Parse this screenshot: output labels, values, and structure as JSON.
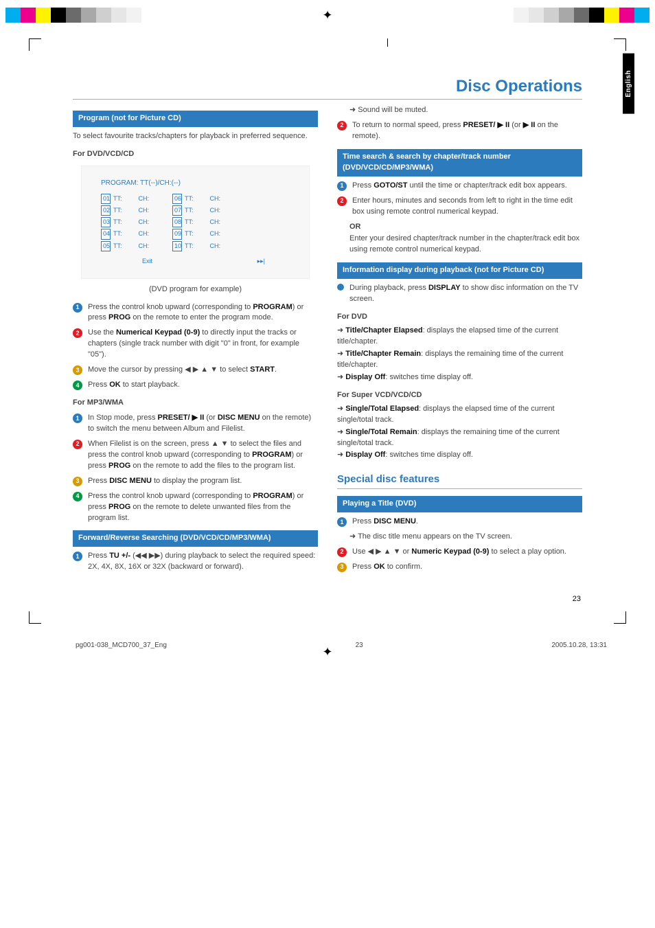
{
  "top_strip_colors_left": [
    "#00aeef",
    "#ec008c",
    "#fff200",
    "#000000",
    "#6b6b6b",
    "#a8a8a8",
    "#cfcfcf",
    "#e6e6e6",
    "#f2f2f2"
  ],
  "top_strip_colors_right": [
    "#f2f2f2",
    "#e6e6e6",
    "#cfcfcf",
    "#a8a8a8",
    "#6b6b6b",
    "#000000",
    "#fff200",
    "#ec008c",
    "#00aeef"
  ],
  "side_tab": "English",
  "page_title": "Disc Operations",
  "page_number": "23",
  "footer_left": "pg001-038_MCD700_37_Eng",
  "footer_mid": "23",
  "footer_right": "2005.10.28, 13:31",
  "left": {
    "h1": "Program (not for Picture CD)",
    "p1": "To select favourite tracks/chapters for playback in preferred sequence.",
    "sub1": "For DVD/VCD/CD",
    "fig_title": "PROGRAM: TT(--)/CH:(--)",
    "fig_rows_left": [
      "01",
      "02",
      "03",
      "04",
      "05"
    ],
    "fig_rows_right": [
      "06",
      "07",
      "08",
      "09",
      "10"
    ],
    "fig_tt": "TT:",
    "fig_ch": "CH:",
    "fig_exit": "Exit",
    "fig_next_icon": "▸▸|",
    "caption": "(DVD program for example)",
    "step1": "Press the control knob upward (corresponding to <b>PROGRAM</b>) or press <b>PROG</b> on the remote to enter the program mode.",
    "step2": "Use the <b>Numerical Keypad (0-9)</b> to directly input the tracks or chapters (single track number with digit \"0\" in front, for example \"05\").",
    "step3": "Move the cursor by pressing ◀ ▶ ▲ ▼ to select <b>START</b>.",
    "step4": "Press <b>OK</b> to start playback.",
    "sub2": "For MP3/WMA",
    "mp3_1": "In Stop mode, press <b>PRESET/ ▶ II</b>  (or <b>DISC MENU</b> on the remote) to switch the menu between Album and Filelist.",
    "mp3_2": "When Filelist is on the screen, press ▲ ▼ to select the files and press the control knob upward (corresponding to <b>PROGRAM</b>) or press <b>PROG</b> on the remote  to add the files to the program list.",
    "mp3_3": "Press <b>DISC MENU</b> to display the program list.",
    "mp3_4": "Press the control knob upward (corresponding to <b>PROGRAM</b>) or press <b>PROG</b> on the remote to delete unwanted files from the program list.",
    "h2": "Forward/Reverse Searching (DVD/VCD/CD/MP3/WMA)",
    "fr_1": "Press <b>TU +/-</b> (◀◀ ▶▶)  during playback to select the required speed: 2X, 4X, 8X, 16X or 32X (backward or forward)."
  },
  "right": {
    "arrow_muted": "➜ Sound will be muted.",
    "step2": "To return to normal speed, press <b>PRESET/ ▶ II</b>  (or  <b>▶ II</b>  on the remote).",
    "h1": "Time search & search by chapter/track number (DVD/VCD/CD/MP3/WMA)",
    "ts_1": "Press <b>GOTO/ST</b> until the time or chapter/track edit box appears.",
    "ts_2": "Enter hours, minutes and seconds from left to right in the time edit box using remote control numerical keypad.",
    "or": "OR",
    "ts_or_text": "Enter your desired chapter/track number in the chapter/track edit box using remote control numerical keypad.",
    "h2": "Information display during playback (not for Picture CD)",
    "info_bullet": "During playback, press <b>DISPLAY</b> to show disc information on the TV screen.",
    "sub_dvd": "For DVD",
    "dvd_l1": "➜ <b>Title/Chapter Elapsed</b>: displays the elapsed time of the current title/chapter.",
    "dvd_l2": "➜ <b>Title/Chapter Remain</b>: displays the remaining time of the current title/chapter.",
    "dvd_l3": "➜ <b>Display Off</b>: switches time display off.",
    "sub_svcd": "For Super VCD/VCD/CD",
    "svcd_l1": "➜ <b>Single/Total Elapsed</b>: displays the elapsed time of the current single/total track.",
    "svcd_l2": "➜ <b>Single/Total Remain</b>: displays the remaining time of the current single/total track.",
    "svcd_l3": "➜ <b>Display Off</b>: switches time display off.",
    "special_title": "Special disc features",
    "h3": "Playing a Title (DVD)",
    "pt_1": "Press <b>DISC MENU</b>.",
    "pt_1_arrow": "➜ The disc title menu appears on the TV screen.",
    "pt_2": "Use ◀ ▶ ▲ ▼ or <b>Numeric Keypad (0-9)</b> to select a play option.",
    "pt_3": "Press <b>OK</b> to confirm."
  }
}
